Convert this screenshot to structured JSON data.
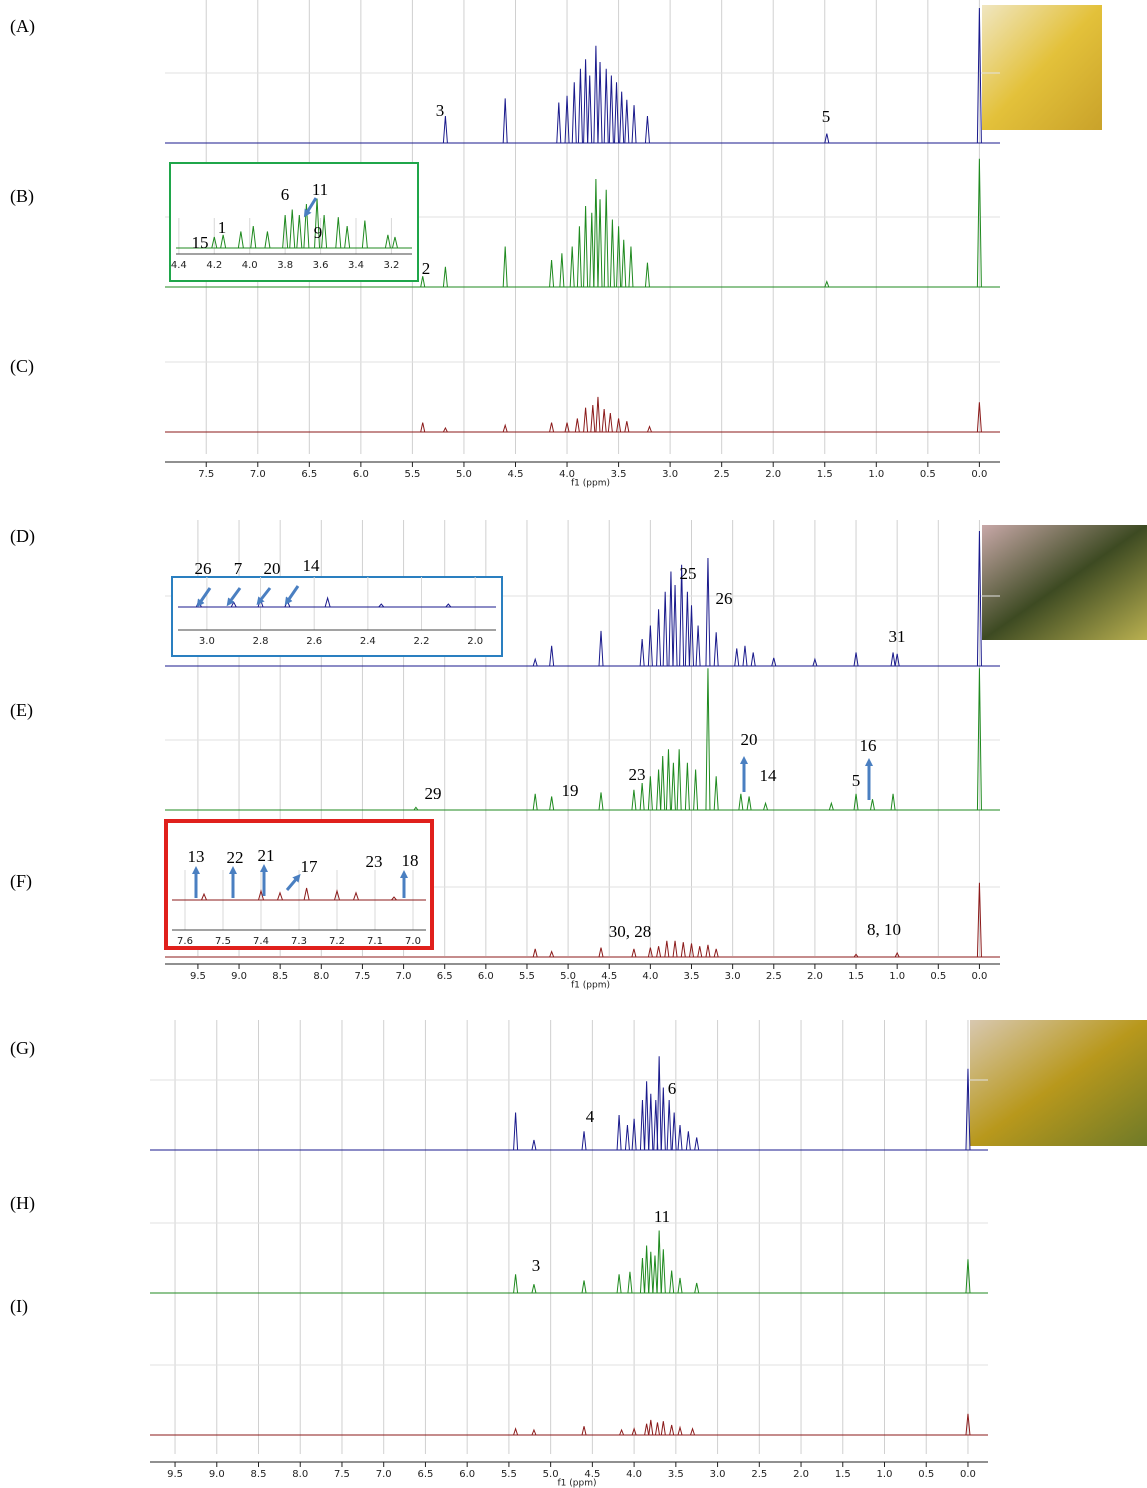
{
  "chart_data": [
    {
      "type": "nmr",
      "xlabel": "f1 (ppm)",
      "xlim": [
        7.9,
        -0.2
      ],
      "grid": true,
      "xticks": [
        7.5,
        {
          "value": 7,
          "label": "7.0"
        },
        6.5,
        {
          "value": 6,
          "label": "6.0"
        },
        5.5,
        {
          "value": 5,
          "label": "5.0"
        },
        4.5,
        {
          "value": 4,
          "label": "4.0"
        },
        3.5,
        {
          "value": 3,
          "label": "3.0"
        },
        2.5,
        {
          "value": 2,
          "label": "2.0"
        },
        1.5,
        {
          "value": 1,
          "label": "1.0"
        },
        0.5,
        {
          "value": 0,
          "label": "0.0"
        }
      ],
      "traces": [
        {
          "name": "(A)",
          "color": "#1a1a8c",
          "annotations": [
            "3",
            "5"
          ],
          "peaks": [
            [
              5.18,
              0.2
            ],
            [
              4.6,
              0.33
            ],
            [
              4.08,
              0.3
            ],
            [
              4.0,
              0.35
            ],
            [
              3.93,
              0.45
            ],
            [
              3.87,
              0.55
            ],
            [
              3.82,
              0.62
            ],
            [
              3.78,
              0.5
            ],
            [
              3.72,
              0.72
            ],
            [
              3.68,
              0.6
            ],
            [
              3.62,
              0.55
            ],
            [
              3.57,
              0.5
            ],
            [
              3.52,
              0.45
            ],
            [
              3.47,
              0.38
            ],
            [
              3.42,
              0.32
            ],
            [
              3.35,
              0.28
            ],
            [
              3.22,
              0.2
            ],
            [
              1.48,
              0.07
            ],
            [
              0.0,
              1.0
            ]
          ]
        },
        {
          "name": "(B)",
          "color": "#1f8a1f",
          "annotations": [
            "2"
          ],
          "peaks": [
            [
              5.4,
              0.08
            ],
            [
              5.18,
              0.15
            ],
            [
              4.6,
              0.3
            ],
            [
              4.15,
              0.2
            ],
            [
              4.05,
              0.25
            ],
            [
              3.95,
              0.3
            ],
            [
              3.88,
              0.45
            ],
            [
              3.82,
              0.6
            ],
            [
              3.76,
              0.55
            ],
            [
              3.72,
              0.8
            ],
            [
              3.68,
              0.65
            ],
            [
              3.62,
              0.72
            ],
            [
              3.56,
              0.5
            ],
            [
              3.5,
              0.45
            ],
            [
              3.45,
              0.35
            ],
            [
              3.38,
              0.3
            ],
            [
              3.22,
              0.18
            ],
            [
              1.48,
              0.04
            ],
            [
              0.0,
              0.95
            ]
          ],
          "inset": {
            "color": "#1fa64a",
            "xlim": [
              4.45,
              3.05
            ],
            "xticks": [
              4.4,
              4.2,
              {
                "value": 4,
                "label": "4.0"
              },
              3.8,
              3.6,
              3.4,
              3.2
            ],
            "annotations": [
              "15",
              "1",
              "6",
              "11",
              "9"
            ],
            "peaks": [
              [
                4.2,
                0.1
              ],
              [
                4.15,
                0.12
              ],
              [
                4.05,
                0.15
              ],
              [
                3.98,
                0.2
              ],
              [
                3.9,
                0.15
              ],
              [
                3.8,
                0.3
              ],
              [
                3.76,
                0.35
              ],
              [
                3.72,
                0.3
              ],
              [
                3.68,
                0.4
              ],
              [
                3.62,
                0.45
              ],
              [
                3.58,
                0.3
              ],
              [
                3.5,
                0.28
              ],
              [
                3.45,
                0.2
              ],
              [
                3.35,
                0.25
              ],
              [
                3.22,
                0.12
              ],
              [
                3.18,
                0.1
              ]
            ]
          }
        },
        {
          "name": "(C)",
          "color": "#8b1a1a",
          "annotations": [],
          "peaks": [
            [
              5.4,
              0.07
            ],
            [
              5.18,
              0.03
            ],
            [
              4.6,
              0.05
            ],
            [
              4.15,
              0.07
            ],
            [
              4.0,
              0.07
            ],
            [
              3.9,
              0.1
            ],
            [
              3.82,
              0.18
            ],
            [
              3.75,
              0.2
            ],
            [
              3.7,
              0.26
            ],
            [
              3.64,
              0.17
            ],
            [
              3.58,
              0.14
            ],
            [
              3.5,
              0.1
            ],
            [
              3.42,
              0.08
            ],
            [
              3.2,
              0.04
            ],
            [
              0.0,
              0.22
            ]
          ]
        }
      ]
    },
    {
      "type": "nmr",
      "xlabel": "f1 (ppm)",
      "xlim": [
        9.9,
        -0.25
      ],
      "grid": true,
      "xticks": [
        9.5,
        {
          "value": 9,
          "label": "9.0"
        },
        8.5,
        {
          "value": 8,
          "label": "8.0"
        },
        7.5,
        {
          "value": 7,
          "label": "7.0"
        },
        6.5,
        {
          "value": 6,
          "label": "6.0"
        },
        5.5,
        {
          "value": 5,
          "label": "5.0"
        },
        4.5,
        {
          "value": 4,
          "label": "4.0"
        },
        3.5,
        {
          "value": 3,
          "label": "3.0"
        },
        2.5,
        {
          "value": 2,
          "label": "2.0"
        },
        1.5,
        {
          "value": 1,
          "label": "1.0"
        },
        0.5,
        {
          "value": 0,
          "label": "0.0"
        }
      ],
      "traces": [
        {
          "name": "(D)",
          "color": "#1a1a8c",
          "annotations": [
            "25",
            "26",
            "31"
          ],
          "peaks": [
            [
              5.4,
              0.05
            ],
            [
              5.2,
              0.15
            ],
            [
              4.6,
              0.26
            ],
            [
              4.1,
              0.2
            ],
            [
              4.0,
              0.3
            ],
            [
              3.9,
              0.42
            ],
            [
              3.82,
              0.55
            ],
            [
              3.75,
              0.7
            ],
            [
              3.7,
              0.6
            ],
            [
              3.62,
              0.75
            ],
            [
              3.55,
              0.55
            ],
            [
              3.5,
              0.45
            ],
            [
              3.42,
              0.3
            ],
            [
              3.3,
              0.8
            ],
            [
              3.2,
              0.25
            ],
            [
              2.95,
              0.13
            ],
            [
              2.85,
              0.15
            ],
            [
              2.75,
              0.1
            ],
            [
              2.5,
              0.06
            ],
            [
              2.0,
              0.05
            ],
            [
              1.5,
              0.1
            ],
            [
              1.05,
              0.1
            ],
            [
              1.0,
              0.09
            ],
            [
              0.0,
              1.0
            ]
          ],
          "inset": {
            "color": "#2a7fc0",
            "xlim": [
              3.13,
              1.9
            ],
            "xticks": [
              {
                "value": 3,
                "label": "3.0"
              },
              2.8,
              2.6,
              2.4,
              2.2,
              {
                "value": 2,
                "label": "2.0"
              }
            ],
            "annotations": [
              "26",
              "7",
              "20",
              "14"
            ],
            "peaks": [
              [
                3.03,
                0.1
              ],
              [
                2.9,
                0.08
              ],
              [
                2.8,
                0.12
              ],
              [
                2.7,
                0.1
              ],
              [
                2.55,
                0.15
              ],
              [
                2.35,
                0.05
              ],
              [
                2.1,
                0.05
              ]
            ]
          }
        },
        {
          "name": "(E)",
          "color": "#1f8a1f",
          "annotations": [
            "29",
            "19",
            "23",
            "20",
            "14",
            "5",
            "16"
          ],
          "peaks": [
            [
              6.85,
              0.02
            ],
            [
              5.4,
              0.12
            ],
            [
              5.2,
              0.1
            ],
            [
              4.6,
              0.13
            ],
            [
              4.2,
              0.15
            ],
            [
              4.1,
              0.2
            ],
            [
              4.0,
              0.25
            ],
            [
              3.9,
              0.3
            ],
            [
              3.85,
              0.4
            ],
            [
              3.78,
              0.45
            ],
            [
              3.72,
              0.35
            ],
            [
              3.65,
              0.45
            ],
            [
              3.55,
              0.35
            ],
            [
              3.45,
              0.3
            ],
            [
              3.3,
              1.05
            ],
            [
              3.2,
              0.25
            ],
            [
              2.9,
              0.12
            ],
            [
              2.8,
              0.1
            ],
            [
              2.6,
              0.05
            ],
            [
              1.8,
              0.05
            ],
            [
              1.5,
              0.12
            ],
            [
              1.3,
              0.08
            ],
            [
              1.05,
              0.12
            ],
            [
              0.0,
              1.05
            ]
          ]
        },
        {
          "name": "(F)",
          "color": "#8b1a1a",
          "annotations": [
            "30, 28",
            "8, 10"
          ],
          "peaks": [
            [
              5.4,
              0.06
            ],
            [
              5.2,
              0.04
            ],
            [
              4.6,
              0.07
            ],
            [
              4.2,
              0.06
            ],
            [
              4.0,
              0.07
            ],
            [
              3.9,
              0.08
            ],
            [
              3.8,
              0.12
            ],
            [
              3.7,
              0.12
            ],
            [
              3.6,
              0.11
            ],
            [
              3.5,
              0.1
            ],
            [
              3.4,
              0.08
            ],
            [
              3.3,
              0.09
            ],
            [
              3.2,
              0.06
            ],
            [
              1.5,
              0.02
            ],
            [
              1.0,
              0.03
            ],
            [
              0.0,
              0.55
            ]
          ],
          "inset": {
            "color": "#e0201c",
            "xlim": [
              7.65,
              6.95
            ],
            "xticks": [
              7.6,
              7.5,
              7.4,
              7.3,
              7.2,
              7.1,
              {
                "value": 7,
                "label": "7.0"
              }
            ],
            "annotations": [
              "13",
              "22",
              "21",
              "17",
              "23",
              "18"
            ],
            "peaks": [
              [
                7.55,
                0.1
              ],
              [
                7.4,
                0.15
              ],
              [
                7.35,
                0.12
              ],
              [
                7.28,
                0.2
              ],
              [
                7.2,
                0.15
              ],
              [
                7.15,
                0.12
              ],
              [
                7.05,
                0.05
              ]
            ]
          }
        }
      ]
    },
    {
      "type": "nmr",
      "xlabel": "f1 (ppm)",
      "xlim": [
        9.8,
        -0.24
      ],
      "grid": true,
      "xticks": [
        9.5,
        {
          "value": 9,
          "label": "9.0"
        },
        8.5,
        {
          "value": 8,
          "label": "8.0"
        },
        7.5,
        {
          "value": 7,
          "label": "7.0"
        },
        6.5,
        {
          "value": 6,
          "label": "6.0"
        },
        5.5,
        {
          "value": 5,
          "label": "5.0"
        },
        4.5,
        {
          "value": 4,
          "label": "4.0"
        },
        3.5,
        {
          "value": 3,
          "label": "3.0"
        },
        2.5,
        {
          "value": 2,
          "label": "2.0"
        },
        1.5,
        {
          "value": 1,
          "label": "1.0"
        },
        0.5,
        {
          "value": 0,
          "label": "0.0"
        }
      ],
      "traces": [
        {
          "name": "(G)",
          "color": "#1a1a8c",
          "annotations": [
            "4",
            "6"
          ],
          "peaks": [
            [
              5.42,
              0.3
            ],
            [
              5.2,
              0.08
            ],
            [
              4.6,
              0.15
            ],
            [
              4.18,
              0.28
            ],
            [
              4.08,
              0.2
            ],
            [
              4.0,
              0.25
            ],
            [
              3.9,
              0.4
            ],
            [
              3.85,
              0.55
            ],
            [
              3.8,
              0.45
            ],
            [
              3.74,
              0.4
            ],
            [
              3.7,
              0.75
            ],
            [
              3.65,
              0.5
            ],
            [
              3.58,
              0.4
            ],
            [
              3.52,
              0.3
            ],
            [
              3.45,
              0.2
            ],
            [
              3.35,
              0.15
            ],
            [
              3.25,
              0.1
            ],
            [
              0.0,
              0.65
            ]
          ]
        },
        {
          "name": "(H)",
          "color": "#1f8a1f",
          "annotations": [
            "3",
            "11"
          ],
          "peaks": [
            [
              5.42,
              0.15
            ],
            [
              5.2,
              0.07
            ],
            [
              4.6,
              0.1
            ],
            [
              4.18,
              0.15
            ],
            [
              4.05,
              0.17
            ],
            [
              3.9,
              0.28
            ],
            [
              3.85,
              0.38
            ],
            [
              3.8,
              0.33
            ],
            [
              3.75,
              0.3
            ],
            [
              3.7,
              0.5
            ],
            [
              3.65,
              0.35
            ],
            [
              3.55,
              0.18
            ],
            [
              3.45,
              0.12
            ],
            [
              3.25,
              0.08
            ],
            [
              0.0,
              0.27
            ]
          ]
        },
        {
          "name": "(I)",
          "color": "#8b1a1a",
          "annotations": [],
          "peaks": [
            [
              5.42,
              0.05
            ],
            [
              5.2,
              0.04
            ],
            [
              4.6,
              0.07
            ],
            [
              4.15,
              0.04
            ],
            [
              4.0,
              0.05
            ],
            [
              3.85,
              0.09
            ],
            [
              3.8,
              0.12
            ],
            [
              3.72,
              0.1
            ],
            [
              3.65,
              0.11
            ],
            [
              3.55,
              0.08
            ],
            [
              3.45,
              0.06
            ],
            [
              3.3,
              0.05
            ],
            [
              0.0,
              0.17
            ]
          ]
        }
      ]
    }
  ]
}
